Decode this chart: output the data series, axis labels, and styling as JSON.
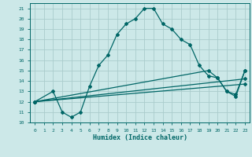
{
  "xlabel": "Humidex (Indice chaleur)",
  "background_color": "#cce8e8",
  "grid_color": "#aacccc",
  "line_color": "#006666",
  "xlim": [
    -0.5,
    23.5
  ],
  "ylim": [
    10,
    21.5
  ],
  "xticks": [
    0,
    1,
    2,
    3,
    4,
    5,
    6,
    7,
    8,
    9,
    10,
    11,
    12,
    13,
    14,
    15,
    16,
    17,
    18,
    19,
    20,
    21,
    22,
    23
  ],
  "yticks": [
    10,
    11,
    12,
    13,
    14,
    15,
    16,
    17,
    18,
    19,
    20,
    21
  ],
  "line1_x": [
    0,
    2,
    3,
    4,
    5,
    6,
    7,
    8,
    9,
    10,
    11,
    12,
    13,
    14,
    15,
    16,
    17,
    18,
    19,
    20,
    21,
    22,
    23
  ],
  "line1_y": [
    12,
    13,
    11,
    10.5,
    11,
    13.5,
    15.5,
    16.5,
    18.5,
    19.5,
    20,
    21,
    21,
    19.5,
    19,
    18,
    17.5,
    15.5,
    14.5,
    14.3,
    13,
    12.5,
    15
  ],
  "line2_x": [
    0,
    19,
    20,
    21,
    22,
    23
  ],
  "line2_y": [
    12,
    15,
    14.3,
    13,
    12.7,
    15
  ],
  "line3_x": [
    0,
    23
  ],
  "line3_y": [
    12,
    14.2
  ],
  "line4_x": [
    0,
    23
  ],
  "line4_y": [
    12,
    13.7
  ]
}
